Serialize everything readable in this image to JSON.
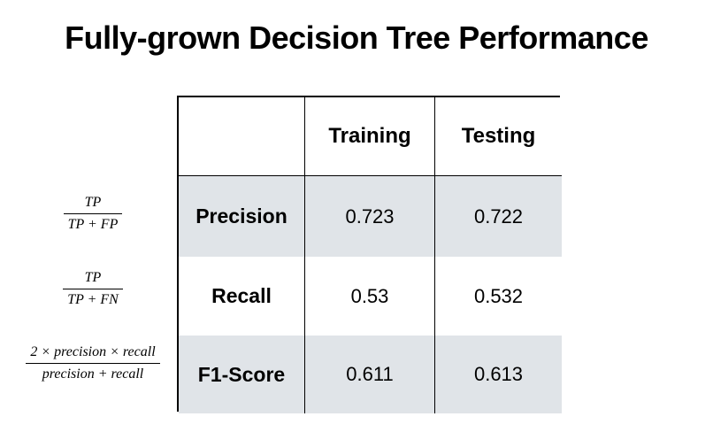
{
  "title": "Fully-grown Decision Tree Performance",
  "table": {
    "columns": [
      "",
      "Training",
      "Testing"
    ],
    "rows": [
      {
        "label": "Precision",
        "training": "0.723",
        "testing": "0.722"
      },
      {
        "label": "Recall",
        "training": "0.53",
        "testing": "0.532"
      },
      {
        "label": "F1-Score",
        "training": "0.611",
        "testing": "0.613"
      }
    ]
  },
  "formulas": [
    {
      "name": "precision-formula",
      "numerator": "TP",
      "denominator": "TP + FP"
    },
    {
      "name": "recall-formula",
      "numerator": "TP",
      "denominator": "TP + FN"
    },
    {
      "name": "f1-formula",
      "numerator": "2 × precision × recall",
      "denominator": "precision + recall"
    }
  ],
  "colors": {
    "background": "#ffffff",
    "row_alt_background": "#e0e4e8",
    "border": "#000000",
    "text": "#000000"
  },
  "chart_data": {
    "type": "table",
    "title": "Fully-grown Decision Tree Performance",
    "columns": [
      "Training",
      "Testing"
    ],
    "row_labels": [
      "Precision",
      "Recall",
      "F1-Score"
    ],
    "series": [
      {
        "name": "Training",
        "values": [
          0.723,
          0.53,
          0.611
        ]
      },
      {
        "name": "Testing",
        "values": [
          0.722,
          0.532,
          0.613
        ]
      }
    ]
  }
}
